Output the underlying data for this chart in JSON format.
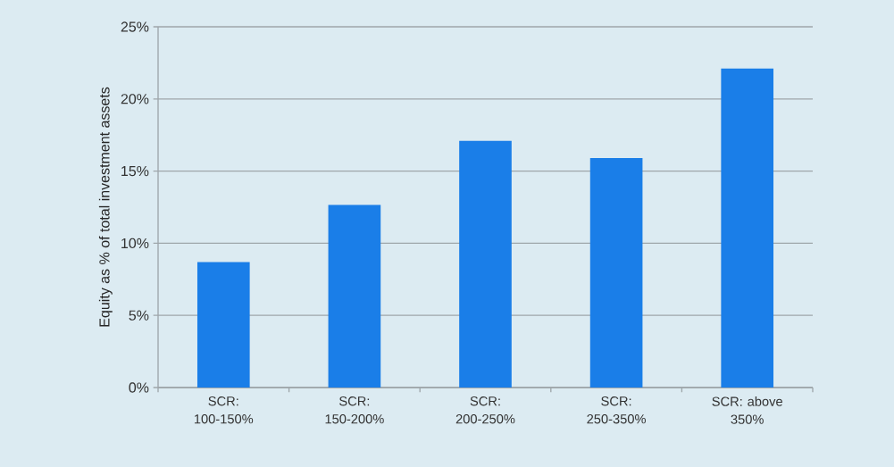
{
  "chart_data": {
    "type": "bar",
    "ylabel": "Equity as % of total investment assets",
    "categories": [
      "SCR: 100-150%",
      "SCR: 150-200%",
      "SCR: 200-250%",
      "SCR: 250-350%",
      "SCR: above 350%"
    ],
    "values": [
      8.7,
      12.65,
      17.1,
      15.9,
      22.1
    ],
    "color": "#1a7ee8",
    "ylim": [
      0,
      25
    ],
    "yticks": [
      {
        "value": 0,
        "label": "0%"
      },
      {
        "value": 5,
        "label": "5%"
      },
      {
        "value": 10,
        "label": "10%"
      },
      {
        "value": 15,
        "label": "15%"
      },
      {
        "value": 20,
        "label": "20%"
      },
      {
        "value": 25,
        "label": "25%"
      }
    ],
    "grid": "y"
  }
}
